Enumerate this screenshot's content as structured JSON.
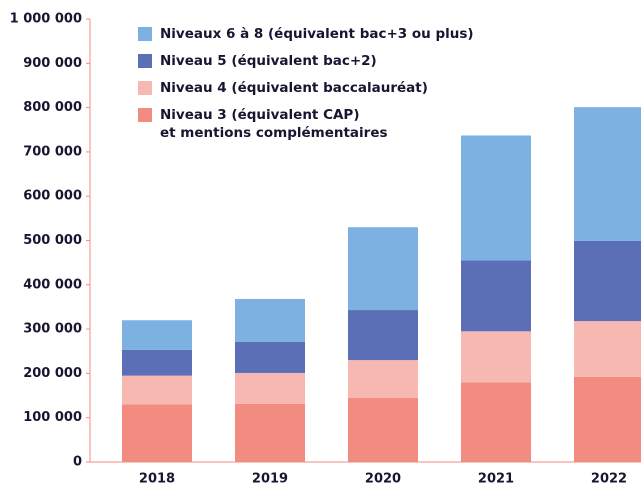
{
  "chart_data": {
    "type": "stacked_bar",
    "categories": [
      "2018",
      "2019",
      "2020",
      "2021",
      "2022"
    ],
    "series": [
      {
        "name": "Niveau 3 (équivalent CAP)\net mentions complémentaires",
        "color": "#f28b80",
        "values": [
          130000,
          131000,
          145000,
          180000,
          192000
        ]
      },
      {
        "name": "Niveau 4 (équivalent baccalauréat)",
        "color": "#f6b8b1",
        "values": [
          65000,
          70000,
          85000,
          115000,
          126000
        ]
      },
      {
        "name": "Niveau 5 (équivalent bac+2)",
        "color": "#5a6fb6",
        "values": [
          58000,
          70000,
          113000,
          160000,
          181000
        ]
      },
      {
        "name": "Niveaux 6 à 8 (équivalent bac+3 ou plus)",
        "color": "#7db1e1",
        "values": [
          67000,
          97000,
          187000,
          282000,
          302000
        ]
      }
    ],
    "ylim": [
      0,
      1000000
    ],
    "yticks": [
      0,
      {
        "value": 100000,
        "label": "100 000"
      },
      {
        "value": 200000,
        "label": "200 000"
      },
      {
        "value": 300000,
        "label": "300 000"
      },
      {
        "value": 400000,
        "label": "400 000"
      },
      {
        "value": 500000,
        "label": "500 000"
      },
      {
        "value": 600000,
        "label": "600 000"
      },
      {
        "value": 700000,
        "label": "700 000"
      },
      {
        "value": 800000,
        "label": "800 000"
      },
      {
        "value": 900000,
        "label": "900 000"
      },
      {
        "value": 1000000,
        "label": "1 000 000"
      }
    ]
  }
}
